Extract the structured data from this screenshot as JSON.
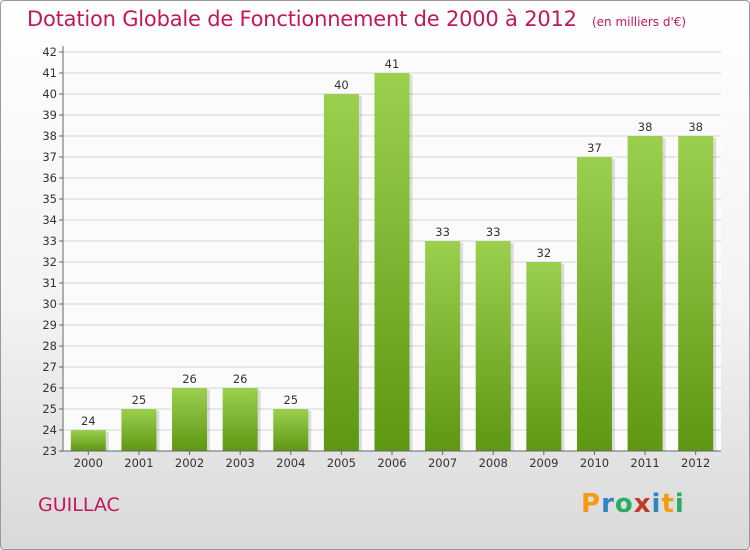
{
  "title": "Dotation Globale de Fonctionnement de 2000 à 2012",
  "unit_note": "(en milliers d'€)",
  "commune": "GUILLAC",
  "logo": {
    "text": "Proxiti",
    "letters": [
      "P",
      "r",
      "o",
      "x",
      "i",
      "t",
      "i"
    ],
    "colors": [
      "#f39c12",
      "#2e86c1",
      "#27ae60",
      "#c0392b",
      "#2e86c1",
      "#f39c12",
      "#27ae60"
    ]
  },
  "chart_data": {
    "type": "bar",
    "categories": [
      "2000",
      "2001",
      "2002",
      "2003",
      "2004",
      "2005",
      "2006",
      "2007",
      "2008",
      "2009",
      "2010",
      "2011",
      "2012"
    ],
    "values": [
      24,
      25,
      26,
      26,
      25,
      40,
      41,
      33,
      33,
      32,
      37,
      38,
      38
    ],
    "ylim": [
      23,
      42
    ],
    "yticks": [
      23,
      24,
      25,
      26,
      27,
      28,
      29,
      30,
      31,
      32,
      33,
      34,
      35,
      36,
      37,
      38,
      39,
      40,
      41,
      42
    ],
    "grid": "horizontal",
    "bar_color_top": "#9bd04f",
    "bar_color_bottom": "#5e9712"
  }
}
